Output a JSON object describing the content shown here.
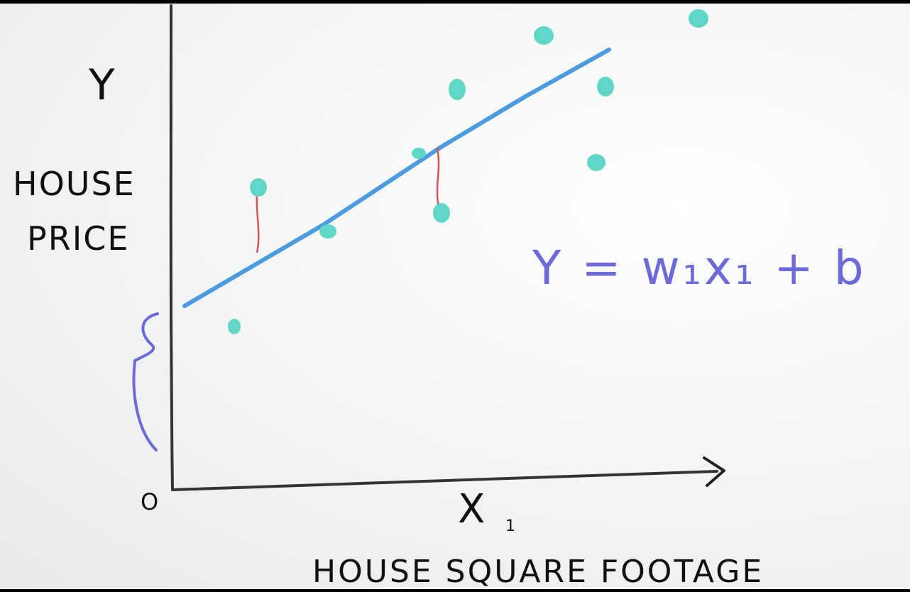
{
  "diagram": {
    "y_axis_symbol": "Y",
    "y_axis_label_line1": "HOUSE",
    "y_axis_label_line2": "PRICE",
    "x_axis_symbol": "X",
    "x_axis_subscript": "1",
    "x_axis_label": "HOUSE SQUARE FOOTAGE",
    "origin_label": "O",
    "equation": "Y = w₁x₁ + b",
    "colors": {
      "axes": "#333333",
      "regression_line": "#4a9be0",
      "data_points": "#5fd6c6",
      "residuals": "#d9535a",
      "equation": "#6b6ad8",
      "intercept_brace": "#6b6ad8",
      "text": "#111111"
    }
  }
}
